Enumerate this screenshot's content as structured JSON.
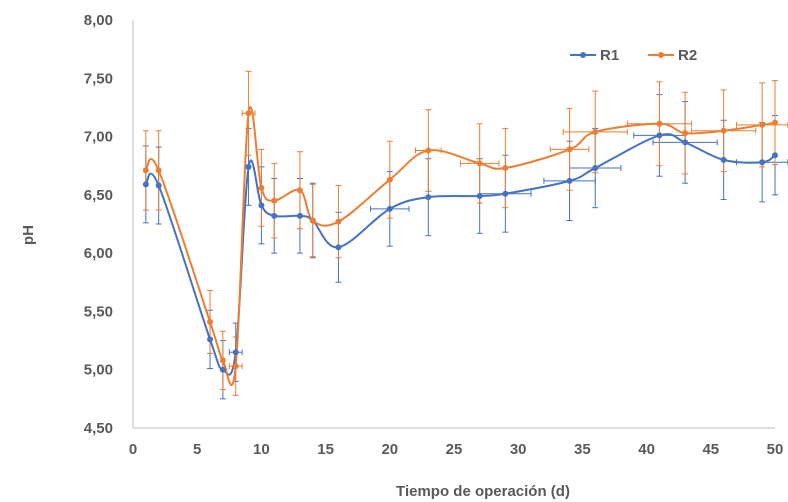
{
  "chart_data": {
    "type": "line",
    "title": "",
    "xlabel": "Tiempo de operación (d)",
    "ylabel": "pH",
    "xlim": [
      0,
      50
    ],
    "ylim": [
      4.5,
      8.0
    ],
    "x_ticks": [
      0,
      5,
      10,
      15,
      20,
      25,
      30,
      35,
      40,
      45,
      50
    ],
    "x_tick_labels": [
      "0",
      "5",
      "10",
      "15",
      "20",
      "25",
      "30",
      "35",
      "40",
      "45",
      "50"
    ],
    "y_ticks": [
      4.5,
      5.0,
      5.5,
      6.0,
      6.5,
      7.0,
      7.5,
      8.0
    ],
    "y_tick_labels": [
      "4,50",
      "5,00",
      "5,50",
      "6,00",
      "6,50",
      "7,00",
      "7,50",
      "8,00"
    ],
    "grid": false,
    "legend_position": "top-right",
    "error_bars": true,
    "series": [
      {
        "name": "R1",
        "color": "#4472C4",
        "x": [
          1,
          2,
          6,
          7,
          8,
          9,
          10,
          11,
          13,
          14,
          16,
          20,
          23,
          27,
          29,
          34,
          36,
          41,
          43,
          46,
          49,
          50
        ],
        "values": [
          6.59,
          6.58,
          5.26,
          5.0,
          5.15,
          6.74,
          6.41,
          6.32,
          6.32,
          6.28,
          6.05,
          6.38,
          6.48,
          6.49,
          6.51,
          6.62,
          6.73,
          7.01,
          6.95,
          6.8,
          6.78,
          6.84
        ],
        "y_err": [
          0.33,
          0.33,
          0.25,
          0.25,
          0.25,
          0.33,
          0.33,
          0.32,
          0.32,
          0.32,
          0.3,
          0.32,
          0.33,
          0.32,
          0.33,
          0.34,
          0.34,
          0.35,
          0.35,
          0.34,
          0.34,
          0.34
        ],
        "x_err": [
          0,
          0,
          0,
          0,
          0.5,
          0,
          0,
          0,
          0,
          0,
          0,
          1.5,
          0,
          0,
          2,
          2,
          2,
          2,
          2.5,
          0,
          2,
          0
        ]
      },
      {
        "name": "R2",
        "color": "#ED7D31",
        "x": [
          1,
          2,
          6,
          7,
          8,
          9,
          10,
          11,
          13,
          14,
          16,
          20,
          23,
          27,
          29,
          34,
          36,
          41,
          43,
          46,
          49,
          50
        ],
        "values": [
          6.71,
          6.71,
          5.41,
          5.08,
          5.03,
          7.2,
          6.56,
          6.45,
          6.54,
          6.28,
          6.27,
          6.63,
          6.88,
          6.77,
          6.73,
          6.89,
          7.04,
          7.11,
          7.03,
          7.05,
          7.1,
          7.12
        ],
        "y_err": [
          0.34,
          0.34,
          0.27,
          0.25,
          0.25,
          0.36,
          0.33,
          0.32,
          0.33,
          0.31,
          0.31,
          0.33,
          0.35,
          0.34,
          0.34,
          0.35,
          0.35,
          0.36,
          0.35,
          0.35,
          0.36,
          0.36
        ],
        "x_err": [
          0,
          0,
          0,
          0,
          0.5,
          0.5,
          0,
          0,
          0,
          0,
          0,
          0,
          1,
          1.5,
          0,
          1.5,
          2.5,
          2.5,
          0,
          2.5,
          2,
          0
        ]
      }
    ]
  }
}
